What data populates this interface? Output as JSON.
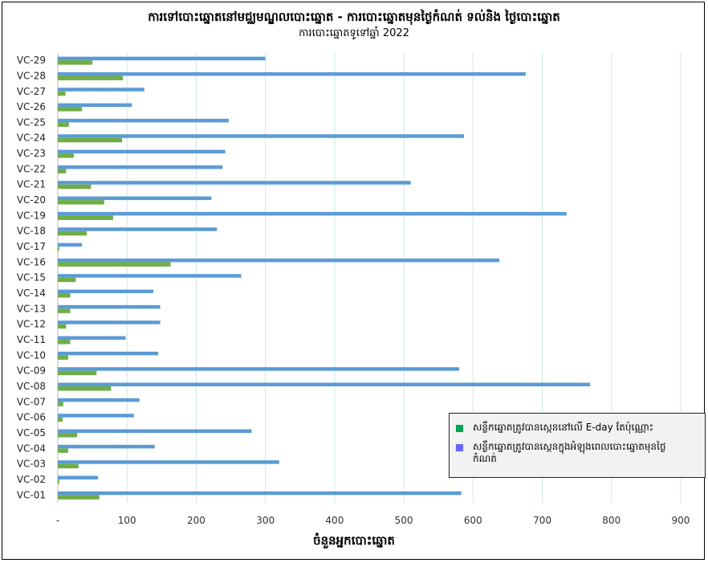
{
  "chart_data": {
    "type": "bar",
    "orientation": "horizontal",
    "title": "ការទៅបោះឆ្នោតនៅមជ្ឈមណ្ឌលបោះឆ្នោត - ការបោះឆ្នោតមុនថ្ងៃកំណត់ ទល់និង ថ្ងៃបោះឆ្នោត",
    "subtitle": "ការបោះឆ្នោតទូទៅឆ្នាំ 2022",
    "xlabel": "ចំនួនអ្នកបោះឆ្នោត",
    "xlim": [
      0,
      900
    ],
    "x_ticks": [
      "-",
      "100",
      "200",
      "300",
      "400",
      "500",
      "600",
      "700",
      "800",
      "900"
    ],
    "grid": "vertical",
    "legend_position": "bottom-right",
    "categories": [
      "VC-01",
      "VC-02",
      "VC-03",
      "VC-04",
      "VC-05",
      "VC-06",
      "VC-07",
      "VC-08",
      "VC-09",
      "VC-10",
      "VC-11",
      "VC-12",
      "VC-13",
      "VC-14",
      "VC-15",
      "VC-16",
      "VC-17",
      "VC-18",
      "VC-19",
      "VC-20",
      "VC-21",
      "VC-22",
      "VC-23",
      "VC-24",
      "VC-25",
      "VC-26",
      "VC-27",
      "VC-28",
      "VC-29"
    ],
    "series": [
      {
        "name": "សន្លឹកឆ្នោតត្រូវបានស្កេននៅលើ E-day តែប៉ុណ្ណោះ",
        "color": "#70ad47",
        "values": [
          60,
          2,
          30,
          15,
          28,
          7,
          8,
          77,
          56,
          15,
          18,
          12,
          18,
          18,
          26,
          163,
          2,
          42,
          80,
          67,
          48,
          12,
          23,
          93,
          16,
          35,
          11,
          94,
          50
        ]
      },
      {
        "name": "សន្លឹកឆ្នោតត្រូវបានស្កេនក្នុងអំឡុងពេលបោះឆ្នោតមុនថ្ងៃកំណត់",
        "color": "#5b9bd5",
        "values": [
          583,
          58,
          320,
          140,
          280,
          110,
          118,
          769,
          580,
          145,
          98,
          148,
          148,
          138,
          265,
          638,
          35,
          230,
          735,
          222,
          510,
          238,
          242,
          587,
          247,
          107,
          125,
          676,
          300
        ]
      }
    ],
    "legend_markers": [
      "#00a651",
      "#6666ff"
    ]
  }
}
